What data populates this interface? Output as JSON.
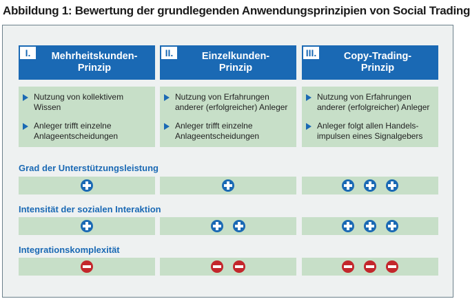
{
  "title": "Abbildung 1: Bewertung der grundlegenden Anwendungsprinzipien von Social Trading",
  "columns": [
    {
      "num": "I.",
      "label_line1": "Mehrheitskunden-",
      "label_line2": "Prinzip",
      "bullets": [
        {
          "line1": "Nutzung von kollektivem",
          "line2": "Wissen"
        },
        {
          "line1": "Anleger trifft einzelne",
          "line2": "Anlageentscheidungen"
        }
      ]
    },
    {
      "num": "II.",
      "label_line1": "Einzelkunden-",
      "label_line2": "Prinzip",
      "bullets": [
        {
          "line1": "Nutzung von Erfahrungen",
          "line2": "anderer (erfolgreicher) Anleger"
        },
        {
          "line1": "Anleger trifft einzelne",
          "line2": "Anlageentscheidungen"
        }
      ]
    },
    {
      "num": "III.",
      "label_line1": "Copy-Trading-",
      "label_line2": "Prinzip",
      "bullets": [
        {
          "line1": "Nutzung von Erfahrungen",
          "line2": "anderer (erfolgreicher) Anleger"
        },
        {
          "line1": "Anleger folgt allen Handels-",
          "line2": "impulsen eines Signalgebers"
        }
      ]
    }
  ],
  "criteria": [
    {
      "label": "Grad der Unterstützungsleistung",
      "ratings": [
        {
          "sign": "plus",
          "count": 1
        },
        {
          "sign": "plus",
          "count": 1
        },
        {
          "sign": "plus",
          "count": 3
        }
      ]
    },
    {
      "label": "Intensität der sozialen Interaktion",
      "ratings": [
        {
          "sign": "plus",
          "count": 1
        },
        {
          "sign": "plus",
          "count": 2
        },
        {
          "sign": "plus",
          "count": 3
        }
      ]
    },
    {
      "label": "Integrationskomplexität",
      "ratings": [
        {
          "sign": "minus",
          "count": 1
        },
        {
          "sign": "minus",
          "count": 2
        },
        {
          "sign": "minus",
          "count": 3
        }
      ]
    }
  ],
  "colors": {
    "accent": "#1a69b4",
    "plus": "#1a69b4",
    "minus": "#c3272c",
    "box": "#c7dfc8"
  }
}
